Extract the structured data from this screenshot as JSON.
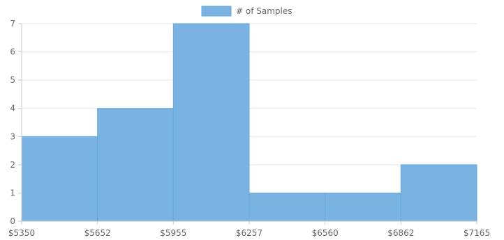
{
  "chart_data": {
    "type": "bar",
    "legend": {
      "position": "top-center",
      "label": "# of Samples",
      "color": "#7ab3e2"
    },
    "bins": [
      {
        "from": 5350,
        "to": 5652,
        "value": 3
      },
      {
        "from": 5652,
        "to": 5955,
        "value": 4
      },
      {
        "from": 5955,
        "to": 6257,
        "value": 7
      },
      {
        "from": 6257,
        "to": 6560,
        "value": 1
      },
      {
        "from": 6560,
        "to": 6862,
        "value": 1
      },
      {
        "from": 6862,
        "to": 7165,
        "value": 2
      }
    ],
    "x_ticks": [
      "$5350",
      "$5652",
      "$5955",
      "$6257",
      "$6560",
      "$6862",
      "$7165"
    ],
    "y_ticks": [
      "0",
      "1",
      "2",
      "3",
      "4",
      "5",
      "6",
      "7"
    ],
    "ylim": [
      0,
      7
    ],
    "grid": true,
    "colors": {
      "bar_fill": "#7ab3e2",
      "bar_stroke": "#66a8dd",
      "grid": "#e6e6e6",
      "axis": "#c8c8c8",
      "text": "#666666"
    }
  }
}
